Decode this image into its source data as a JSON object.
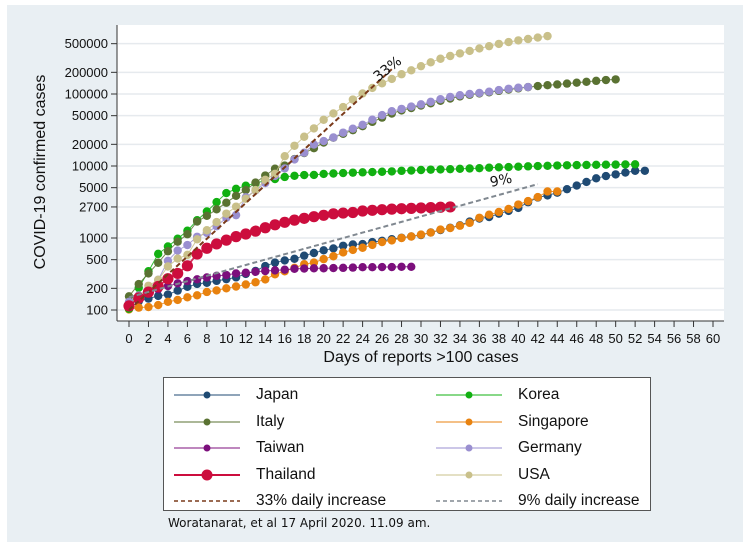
{
  "chart_data": {
    "type": "line",
    "title": "",
    "xlabel": "Days of reports >100 cases",
    "ylabel": "COVID-19 confirmed cases",
    "xlim": [
      0,
      60
    ],
    "ylim": [
      85,
      700000
    ],
    "yscale": "log",
    "grid": true,
    "x_ticks": [
      0,
      2,
      4,
      6,
      8,
      10,
      12,
      14,
      16,
      18,
      20,
      22,
      24,
      26,
      28,
      30,
      32,
      34,
      36,
      38,
      40,
      42,
      44,
      46,
      48,
      50,
      52,
      54,
      56,
      58,
      60
    ],
    "y_ticks": [
      {
        "value": 100,
        "label": "100"
      },
      {
        "value": 200,
        "label": "200"
      },
      {
        "value": 500,
        "label": "500"
      },
      {
        "value": 1000,
        "label": "1000"
      },
      {
        "value": 2700,
        "label": "2700"
      },
      {
        "value": 5000,
        "label": "5000"
      },
      {
        "value": 10000,
        "label": "10000"
      },
      {
        "value": 20000,
        "label": "20000"
      },
      {
        "value": 50000,
        "label": "50000"
      },
      {
        "value": 100000,
        "label": "100000"
      },
      {
        "value": 200000,
        "label": "200000"
      },
      {
        "value": 500000,
        "label": "500000"
      }
    ],
    "legend_position": "bottom",
    "series": [
      {
        "name": "Japan",
        "color": "#1f4a73",
        "line": "solid",
        "marker": "small",
        "values": [
          105,
          132,
          144,
          157,
          164,
          186,
          210,
          230,
          239,
          254,
          268,
          284,
          317,
          349,
          408,
          455,
          488,
          514,
          568,
          619,
          675,
          716,
          780,
          814,
          824,
          878,
          914,
          963,
          1007,
          1052,
          1101,
          1193,
          1291,
          1387,
          1499,
          1693,
          1866,
          1953,
          2178,
          2381,
          2617,
          3139,
          3654,
          3906,
          4257,
          4768,
          5347,
          6005,
          6748,
          7255,
          7645,
          8100,
          8582,
          8582
        ]
      },
      {
        "name": "Korea",
        "color": "#11b011",
        "line": "solid",
        "marker": "small",
        "values": [
          104,
          204,
          346,
          602,
          763,
          977,
          1261,
          1766,
          2337,
          3150,
          4212,
          4812,
          5328,
          5766,
          6284,
          6593,
          7041,
          7313,
          7478,
          7513,
          7755,
          7869,
          7979,
          8086,
          8162,
          8236,
          8320,
          8413,
          8565,
          8652,
          8799,
          8897,
          8961,
          9037,
          9137,
          9241,
          9332,
          9478,
          9583,
          9661,
          9786,
          9887,
          9976,
          10062,
          10156,
          10237,
          10284,
          10331,
          10384,
          10423,
          10450,
          10512,
          10564
        ]
      },
      {
        "name": "Italy",
        "color": "#5a7232",
        "line": "solid",
        "marker": "small",
        "values": [
          155,
          229,
          322,
          453,
          655,
          888,
          1128,
          1694,
          2036,
          2502,
          3089,
          3858,
          4636,
          5883,
          7375,
          9172,
          10149,
          12462,
          15113,
          17660,
          21157,
          24747,
          27980,
          31506,
          35713,
          41035,
          47021,
          53578,
          59138,
          63927,
          69176,
          74386,
          80589,
          86498,
          92472,
          97689,
          101739,
          105792,
          110574,
          115242,
          119827,
          124632,
          128948,
          132547,
          135586,
          139422,
          143626,
          147577,
          152271,
          156363,
          159516
        ]
      },
      {
        "name": "Singapore",
        "color": "#e8820f",
        "line": "solid",
        "marker": "small",
        "values": [
          102,
          108,
          110,
          117,
          130,
          138,
          150,
          160,
          178,
          187,
          200,
          212,
          226,
          243,
          266,
          313,
          345,
          385,
          432,
          455,
          509,
          558,
          631,
          683,
          732,
          802,
          879,
          926,
          1000,
          1049,
          1114,
          1189,
          1309,
          1375,
          1481,
          1623,
          1910,
          2108,
          2299,
          2532,
          2918,
          3252,
          3699,
          4427,
          4427
        ]
      },
      {
        "name": "Taiwan",
        "color": "#7c0f7c",
        "line": "solid",
        "marker": "small",
        "values": [
          108,
          153,
          169,
          195,
          215,
          235,
          252,
          267,
          283,
          298,
          306,
          322,
          329,
          339,
          348,
          355,
          363,
          373,
          376,
          379,
          380,
          382,
          385,
          388,
          393,
          393,
          395,
          395,
          398,
          398
        ]
      },
      {
        "name": "Germany",
        "color": "#9a8fd0",
        "line": "solid",
        "marker": "small",
        "values": [
          130,
          159,
          196,
          262,
          482,
          670,
          799,
          1040,
          1176,
          1457,
          1908,
          2078,
          3675,
          4585,
          5795,
          7272,
          9257,
          12327,
          15320,
          19848,
          22213,
          24873,
          29056,
          32986,
          37323,
          43938,
          50871,
          57695,
          62095,
          66885,
          71808,
          77872,
          84794,
          91159,
          96092,
          100123,
          103375,
          107663,
          113296,
          118181,
          122171,
          124908
        ]
      },
      {
        "name": "Thailand",
        "color": "#cc0d3d",
        "line": "solid",
        "marker": "large",
        "values": [
          114,
          147,
          177,
          212,
          272,
          322,
          411,
          599,
          721,
          827,
          934,
          1045,
          1136,
          1245,
          1388,
          1524,
          1651,
          1771,
          1875,
          1978,
          2067,
          2169,
          2220,
          2258,
          2369,
          2423,
          2473,
          2518,
          2551,
          2579,
          2613,
          2643,
          2672,
          2700
        ]
      },
      {
        "name": "USA",
        "color": "#c9c08a",
        "line": "solid",
        "marker": "small",
        "values": [
          118,
          149,
          217,
          262,
          402,
          518,
          583,
          959,
          1281,
          1663,
          2179,
          2726,
          3499,
          4632,
          6421,
          7783,
          13677,
          19100,
          25489,
          33276,
          43847,
          53740,
          65778,
          83836,
          101657,
          121478,
          140886,
          161807,
          188172,
          213372,
          243453,
          275586,
          308850,
          337072,
          366317,
          396223,
          429052,
          461437,
          496535,
          526396,
          555313,
          580619,
          607670,
          636350
        ]
      },
      {
        "name": "33% daily increase",
        "color": "#7a3a1a",
        "line": "dashed",
        "marker": "none",
        "x_range": [
          0,
          27
        ],
        "start": 100,
        "daily_rate": 0.33,
        "annotation": "33%"
      },
      {
        "name": "9% daily increase",
        "color": "#808890",
        "line": "dashed",
        "marker": "none",
        "x_range": [
          0,
          42
        ],
        "start": 150,
        "daily_rate": 0.09,
        "annotation": "9%"
      }
    ]
  },
  "legend": {
    "items": [
      {
        "label": "Japan",
        "color": "#1f4a73",
        "style": "marker"
      },
      {
        "label": "Korea",
        "color": "#11b011",
        "style": "marker"
      },
      {
        "label": "Italy",
        "color": "#5a7232",
        "style": "marker"
      },
      {
        "label": "Singapore",
        "color": "#e8820f",
        "style": "marker"
      },
      {
        "label": "Taiwan",
        "color": "#7c0f7c",
        "style": "marker"
      },
      {
        "label": "Germany",
        "color": "#9a8fd0",
        "style": "marker"
      },
      {
        "label": "Thailand",
        "color": "#cc0d3d",
        "style": "marker-large"
      },
      {
        "label": "USA",
        "color": "#c9c08a",
        "style": "marker"
      },
      {
        "label": "33% daily increase",
        "color": "#7a3a1a",
        "style": "dashed"
      },
      {
        "label": "9% daily increase",
        "color": "#808890",
        "style": "dashed"
      }
    ]
  },
  "credit": "Woratanarat, et al 17 April 2020. 11.09 am."
}
